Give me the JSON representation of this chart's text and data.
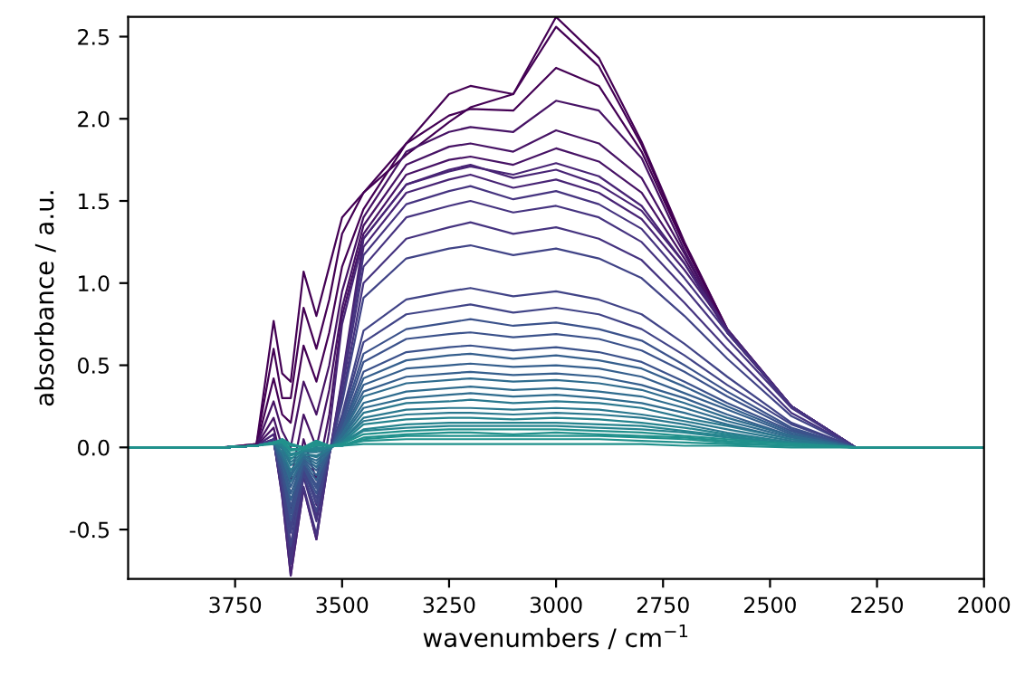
{
  "chart_data": {
    "type": "line",
    "xlabel": "wavenumbers / cm$^{−1}$",
    "ylabel": "absorbance / a.u.",
    "xlim": [
      4000,
      2000
    ],
    "ylim": [
      -0.8,
      2.62
    ],
    "xticks": [
      3750,
      3500,
      3250,
      3000,
      2750,
      2500,
      2250,
      2000
    ],
    "yticks": [
      -0.5,
      {
        "value": 0,
        "label": "0.0"
      },
      0.5,
      {
        "value": 1,
        "label": "1.0"
      },
      1.5,
      {
        "value": 2,
        "label": "2.0"
      },
      2.5
    ],
    "grid": false,
    "marker": "none",
    "line_style": "solid",
    "x": [
      4000,
      3780,
      3700,
      3660,
      3640,
      3620,
      3590,
      3560,
      3530,
      3500,
      3450,
      3350,
      3250,
      3200,
      3100,
      3000,
      2900,
      2800,
      2700,
      2600,
      2450,
      2300,
      2000
    ],
    "series": [
      {
        "color": "#440154",
        "values": [
          0,
          0,
          0.02,
          0.77,
          0.45,
          0.4,
          1.07,
          0.8,
          1.1,
          1.4,
          1.55,
          1.78,
          1.98,
          2.07,
          2.15,
          2.62,
          2.37,
          1.86,
          1.25,
          0.72,
          0.25,
          0,
          0
        ]
      },
      {
        "color": "#440154",
        "values": [
          0,
          0,
          0.02,
          0.6,
          0.3,
          0.3,
          0.85,
          0.6,
          0.9,
          1.3,
          1.55,
          1.85,
          2.15,
          2.2,
          2.15,
          2.56,
          2.32,
          1.84,
          1.24,
          0.72,
          0.25,
          0,
          0
        ]
      },
      {
        "color": "#440154",
        "values": [
          0,
          0,
          0.01,
          0.42,
          0.2,
          0.15,
          0.62,
          0.4,
          0.7,
          1.1,
          1.45,
          1.85,
          2.02,
          2.06,
          2.05,
          2.31,
          2.2,
          1.8,
          1.23,
          0.71,
          0.25,
          0,
          0
        ]
      },
      {
        "color": "#471365",
        "values": [
          0,
          0,
          0.01,
          0.28,
          0.1,
          0.0,
          0.4,
          0.2,
          0.5,
          0.95,
          1.4,
          1.8,
          1.92,
          1.95,
          1.92,
          2.11,
          2.05,
          1.76,
          1.2,
          0.7,
          0.25,
          0,
          0
        ]
      },
      {
        "color": "#471365",
        "values": [
          0,
          0,
          0.01,
          0.18,
          0.0,
          -0.2,
          0.2,
          0.0,
          0.35,
          0.85,
          1.35,
          1.72,
          1.83,
          1.85,
          1.8,
          1.93,
          1.85,
          1.64,
          1.18,
          0.7,
          0.25,
          0,
          0
        ]
      },
      {
        "color": "#471365",
        "values": [
          0,
          0,
          0.01,
          0.12,
          -0.1,
          -0.4,
          0.05,
          -0.2,
          0.2,
          0.8,
          1.3,
          1.66,
          1.75,
          1.77,
          1.72,
          1.82,
          1.74,
          1.55,
          1.15,
          0.7,
          0.25,
          0,
          0
        ]
      },
      {
        "color": "#482475",
        "values": [
          0,
          0,
          0.01,
          0.08,
          -0.2,
          -0.6,
          -0.1,
          -0.35,
          0.1,
          0.75,
          1.27,
          1.6,
          1.68,
          1.71,
          1.66,
          1.73,
          1.65,
          1.47,
          1.12,
          0.7,
          0.25,
          0,
          0
        ]
      },
      {
        "color": "#482475",
        "values": [
          0,
          0,
          0.01,
          0.05,
          -0.3,
          -0.78,
          -0.25,
          -0.56,
          -0.05,
          0.42,
          1.27,
          1.6,
          1.69,
          1.72,
          1.64,
          1.69,
          1.6,
          1.44,
          1.12,
          0.72,
          0.25,
          0,
          0
        ]
      },
      {
        "color": "#482475",
        "values": [
          0,
          0,
          0.01,
          0.05,
          -0.3,
          -0.78,
          -0.25,
          -0.56,
          -0.05,
          0.4,
          1.22,
          1.55,
          1.63,
          1.66,
          1.58,
          1.63,
          1.55,
          1.39,
          1.08,
          0.72,
          0.25,
          0,
          0
        ]
      },
      {
        "color": "#463480",
        "values": [
          0,
          0,
          0.01,
          0.05,
          -0.28,
          -0.71,
          -0.24,
          -0.53,
          -0.05,
          0.38,
          1.17,
          1.48,
          1.56,
          1.59,
          1.51,
          1.56,
          1.48,
          1.33,
          1.03,
          0.7,
          0.25,
          0,
          0
        ]
      },
      {
        "color": "#463480",
        "values": [
          0,
          0,
          0.01,
          0.04,
          -0.27,
          -0.68,
          -0.18,
          -0.45,
          -0.05,
          0.35,
          1.1,
          1.4,
          1.47,
          1.5,
          1.43,
          1.47,
          1.4,
          1.25,
          0.97,
          0.66,
          0.24,
          0,
          0
        ]
      },
      {
        "color": "#463480",
        "values": [
          0,
          0,
          0.01,
          0.04,
          -0.25,
          -0.64,
          -0.17,
          -0.42,
          -0.04,
          0.3,
          1.0,
          1.27,
          1.34,
          1.37,
          1.3,
          1.34,
          1.27,
          1.14,
          0.88,
          0.6,
          0.21,
          0,
          0
        ]
      },
      {
        "color": "#414487",
        "values": [
          0,
          0,
          0.01,
          0.04,
          -0.23,
          -0.6,
          -0.16,
          -0.39,
          -0.04,
          0.27,
          0.91,
          1.15,
          1.21,
          1.23,
          1.17,
          1.21,
          1.15,
          1.03,
          0.8,
          0.54,
          0.19,
          0,
          0
        ]
      },
      {
        "color": "#414487",
        "values": [
          0,
          0,
          0.01,
          0.03,
          -0.2,
          -0.52,
          -0.14,
          -0.34,
          -0.03,
          0.2,
          0.71,
          0.9,
          0.95,
          0.97,
          0.92,
          0.95,
          0.9,
          0.81,
          0.63,
          0.43,
          0.15,
          0,
          0
        ]
      },
      {
        "color": "#414487",
        "values": [
          0,
          0,
          0.01,
          0.03,
          -0.18,
          -0.48,
          -0.13,
          -0.31,
          -0.03,
          0.18,
          0.64,
          0.81,
          0.85,
          0.87,
          0.82,
          0.85,
          0.81,
          0.72,
          0.56,
          0.38,
          0.14,
          0,
          0
        ]
      },
      {
        "color": "#3b528b",
        "values": [
          0,
          0,
          0.01,
          0.03,
          -0.16,
          -0.44,
          -0.12,
          -0.28,
          -0.03,
          0.16,
          0.57,
          0.72,
          0.76,
          0.78,
          0.74,
          0.76,
          0.72,
          0.65,
          0.5,
          0.34,
          0.12,
          0,
          0
        ]
      },
      {
        "color": "#3b528b",
        "values": [
          0,
          0,
          0.01,
          0.03,
          -0.14,
          -0.4,
          -0.11,
          -0.25,
          -0.03,
          0.14,
          0.52,
          0.66,
          0.69,
          0.7,
          0.67,
          0.69,
          0.66,
          0.59,
          0.46,
          0.31,
          0.11,
          0,
          0
        ]
      },
      {
        "color": "#3b528b",
        "values": [
          0,
          0,
          0.01,
          0.03,
          -0.13,
          -0.36,
          -0.1,
          -0.23,
          -0.02,
          0.12,
          0.46,
          0.58,
          0.61,
          0.62,
          0.59,
          0.61,
          0.58,
          0.52,
          0.4,
          0.27,
          0.1,
          0,
          0
        ]
      },
      {
        "color": "#355f8d",
        "values": [
          0,
          0,
          0.01,
          0.03,
          -0.11,
          -0.32,
          -0.09,
          -0.2,
          -0.02,
          0.11,
          0.42,
          0.53,
          0.56,
          0.57,
          0.54,
          0.56,
          0.53,
          0.48,
          0.37,
          0.25,
          0.09,
          0,
          0
        ]
      },
      {
        "color": "#355f8d",
        "values": [
          0,
          0,
          0.01,
          0.03,
          -0.09,
          -0.28,
          -0.08,
          -0.17,
          -0.02,
          0.1,
          0.38,
          0.48,
          0.5,
          0.51,
          0.49,
          0.5,
          0.48,
          0.43,
          0.33,
          0.23,
          0.08,
          0,
          0
        ]
      },
      {
        "color": "#355f8d",
        "values": [
          0,
          0,
          0.01,
          0.03,
          -0.07,
          -0.24,
          -0.07,
          -0.14,
          -0.02,
          0.09,
          0.34,
          0.43,
          0.45,
          0.46,
          0.44,
          0.45,
          0.43,
          0.38,
          0.3,
          0.2,
          0.07,
          0,
          0
        ]
      },
      {
        "color": "#2f6c8e",
        "values": [
          0,
          0,
          0.01,
          0.03,
          -0.06,
          -0.21,
          -0.06,
          -0.12,
          -0.02,
          0.08,
          0.31,
          0.39,
          0.41,
          0.42,
          0.4,
          0.41,
          0.39,
          0.35,
          0.27,
          0.18,
          0.07,
          0,
          0
        ]
      },
      {
        "color": "#2f6c8e",
        "values": [
          0,
          0,
          0.01,
          0.03,
          -0.05,
          -0.18,
          -0.05,
          -0.1,
          -0.01,
          0.07,
          0.27,
          0.34,
          0.36,
          0.37,
          0.35,
          0.36,
          0.34,
          0.31,
          0.24,
          0.16,
          0.06,
          0,
          0
        ]
      },
      {
        "color": "#2f6c8e",
        "values": [
          0,
          0,
          0.01,
          0.03,
          -0.04,
          -0.16,
          -0.05,
          -0.08,
          -0.01,
          0.06,
          0.24,
          0.3,
          0.32,
          0.33,
          0.31,
          0.32,
          0.3,
          0.27,
          0.21,
          0.14,
          0.05,
          0,
          0
        ]
      },
      {
        "color": "#2a788e",
        "values": [
          0,
          0,
          0.01,
          0.03,
          -0.03,
          -0.14,
          -0.04,
          -0.06,
          -0.01,
          0.05,
          0.21,
          0.27,
          0.28,
          0.29,
          0.27,
          0.28,
          0.27,
          0.24,
          0.18,
          0.13,
          0.05,
          0,
          0
        ]
      },
      {
        "color": "#2a788e",
        "values": [
          0,
          0,
          0.01,
          0.03,
          -0.01,
          -0.11,
          -0.04,
          -0.05,
          -0.01,
          0.04,
          0.18,
          0.23,
          0.24,
          0.24,
          0.23,
          0.24,
          0.23,
          0.2,
          0.16,
          0.11,
          0.04,
          0,
          0
        ]
      },
      {
        "color": "#2a788e",
        "values": [
          0,
          0,
          0.01,
          0.03,
          0,
          -0.09,
          -0.03,
          -0.03,
          -0.01,
          0.04,
          0.16,
          0.2,
          0.21,
          0.21,
          0.2,
          0.21,
          0.2,
          0.18,
          0.14,
          0.09,
          0.03,
          0,
          0
        ]
      },
      {
        "color": "#25848e",
        "values": [
          0,
          0,
          0.01,
          0.03,
          0.01,
          -0.07,
          -0.02,
          -0.02,
          0,
          0.03,
          0.14,
          0.17,
          0.18,
          0.18,
          0.17,
          0.18,
          0.17,
          0.15,
          0.12,
          0.08,
          0.03,
          0,
          0
        ]
      },
      {
        "color": "#25848e",
        "values": [
          0,
          0,
          0.01,
          0.03,
          0.02,
          -0.05,
          -0.02,
          -0.01,
          0,
          0.03,
          0.11,
          0.14,
          0.15,
          0.15,
          0.15,
          0.15,
          0.14,
          0.13,
          0.1,
          0.07,
          0.02,
          0,
          0
        ]
      },
      {
        "color": "#25848e",
        "values": [
          0,
          0,
          0.01,
          0.03,
          0.03,
          -0.04,
          -0.02,
          0,
          0,
          0.02,
          0.1,
          0.12,
          0.13,
          0.13,
          0.13,
          0.13,
          0.12,
          0.11,
          0.09,
          0.06,
          0.02,
          0,
          0
        ]
      },
      {
        "color": "#21918c",
        "values": [
          0,
          0,
          0.01,
          0.03,
          0.03,
          -0.02,
          -0.01,
          0.01,
          0.01,
          0.02,
          0.08,
          0.1,
          0.11,
          0.11,
          0.11,
          0.11,
          0.1,
          0.09,
          0.07,
          0.05,
          0.02,
          0,
          0
        ]
      },
      {
        "color": "#21918c",
        "values": [
          0,
          0,
          0.01,
          0.03,
          0.04,
          -0.01,
          -0.01,
          0.02,
          0.01,
          0.01,
          0.06,
          0.08,
          0.09,
          0.09,
          0.08,
          0.09,
          0.08,
          0.07,
          0.06,
          0.04,
          0.02,
          0,
          0
        ]
      },
      {
        "color": "#21918c",
        "values": [
          0,
          0,
          0.01,
          0.03,
          0.04,
          0.01,
          0,
          0.03,
          0.01,
          0.01,
          0.05,
          0.07,
          0.07,
          0.07,
          0.07,
          0.07,
          0.07,
          0.06,
          0.05,
          0.03,
          0.01,
          0,
          0
        ]
      },
      {
        "color": "#21918c",
        "values": [
          0,
          0,
          0.01,
          0.03,
          0.05,
          0.02,
          0,
          0.04,
          0.01,
          0.01,
          0.04,
          0.05,
          0.05,
          0.05,
          0.05,
          0.05,
          0.05,
          0.04,
          0.03,
          0.02,
          0.01,
          0,
          0
        ]
      },
      {
        "color": "#21918c",
        "values": [
          0,
          0,
          0.01,
          0.02,
          0.05,
          0.02,
          0,
          0.04,
          0.01,
          0.01,
          0.02,
          0.02,
          0.02,
          0.02,
          0.02,
          0.02,
          0.02,
          0.02,
          0.01,
          0.01,
          0,
          0,
          0
        ]
      }
    ]
  }
}
